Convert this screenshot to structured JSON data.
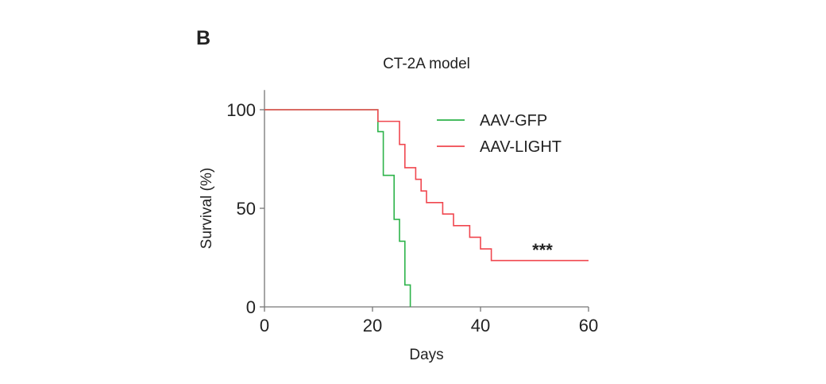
{
  "panel_label": "B",
  "chart_data": {
    "type": "line",
    "subtype": "kaplan-meier step",
    "title": "CT-2A model",
    "xlabel": "Days",
    "ylabel": "Survival (%)",
    "xlim": [
      0,
      60
    ],
    "ylim": [
      0,
      110
    ],
    "xticks": [
      0,
      20,
      40,
      60
    ],
    "yticks": [
      0,
      50,
      100
    ],
    "grid": false,
    "legend_position": "top-right",
    "annotation": "***",
    "series": [
      {
        "name": "AAV-GFP",
        "color": "#2db34a",
        "steps": [
          [
            0,
            100
          ],
          [
            21,
            88.9
          ],
          [
            22,
            66.7
          ],
          [
            24,
            44.4
          ],
          [
            25,
            33.3
          ],
          [
            26,
            11.1
          ],
          [
            27,
            0
          ]
        ]
      },
      {
        "name": "AAV-LIGHT",
        "color": "#f0474f",
        "steps": [
          [
            0,
            100
          ],
          [
            21,
            94.1
          ],
          [
            25,
            82.4
          ],
          [
            26,
            70.6
          ],
          [
            28,
            64.7
          ],
          [
            29,
            58.8
          ],
          [
            30,
            52.9
          ],
          [
            33,
            47.1
          ],
          [
            35,
            41.2
          ],
          [
            38,
            35.3
          ],
          [
            40,
            29.4
          ],
          [
            42,
            23.5
          ],
          [
            60,
            23.5
          ]
        ]
      }
    ]
  }
}
